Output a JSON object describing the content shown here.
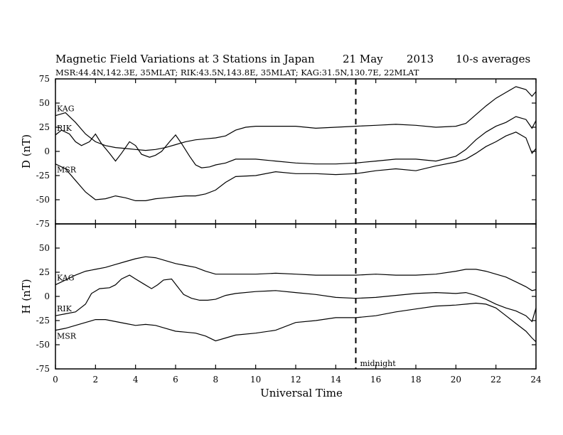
{
  "chart_data": {
    "type": "line",
    "title": "Magnetic Field Variations at 3 Stations in Japan",
    "date_label": "21 May",
    "year_label": "2013",
    "averaging_label": "10-s averages",
    "subtitle": "MSR:44.4N,142.3E, 35MLAT;  RIK:43.5N,143.8E, 35MLAT;  KAG:31.5N,130.7E, 22MLAT",
    "xlabel": "Universal Time",
    "xlim": [
      0,
      24
    ],
    "xticks": [
      "0",
      "2",
      "4",
      "6",
      "8",
      "10",
      "12",
      "14",
      "16",
      "18",
      "20",
      "22",
      "24"
    ],
    "marker": {
      "x": 15,
      "label": "midnight"
    },
    "panels": [
      {
        "ylabel": "D (nT)",
        "ylim": [
          -75,
          75
        ],
        "yticks": [
          "75",
          "50",
          "25",
          "0",
          "-25",
          "-50",
          "-75"
        ],
        "series": [
          {
            "name": "KAG",
            "x": [
              0,
              0.5,
              1,
              1.5,
              2,
              2.5,
              3,
              3.5,
              4,
              4.5,
              5,
              5.5,
              6,
              6.5,
              7,
              7.5,
              8,
              8.5,
              9,
              9.5,
              10,
              11,
              12,
              13,
              14,
              15,
              16,
              17,
              18,
              19,
              20,
              20.5,
              21,
              21.5,
              22,
              22.5,
              23,
              23.5,
              23.8,
              24
            ],
            "y": [
              37,
              40,
              30,
              18,
              10,
              6,
              4,
              3,
              2,
              1,
              2,
              4,
              7,
              10,
              12,
              13,
              14,
              16,
              22,
              25,
              26,
              26,
              26,
              24,
              25,
              26,
              27,
              28,
              27,
              25,
              26,
              29,
              38,
              47,
              55,
              61,
              67,
              64,
              57,
              62
            ]
          },
          {
            "name": "RIK",
            "x": [
              0,
              0.3,
              0.7,
              1,
              1.3,
              1.7,
              2,
              2.3,
              2.7,
              3,
              3.3,
              3.7,
              4,
              4.3,
              4.7,
              5,
              5.3,
              5.7,
              6,
              6.3,
              6.7,
              7,
              7.3,
              7.7,
              8,
              8.5,
              9,
              10,
              11,
              12,
              13,
              14,
              15,
              16,
              17,
              18,
              19,
              20,
              20.5,
              21,
              21.5,
              22,
              22.5,
              23,
              23.5,
              23.8,
              24
            ],
            "y": [
              17,
              22,
              18,
              10,
              6,
              10,
              18,
              8,
              -2,
              -10,
              -2,
              10,
              6,
              -3,
              -6,
              -4,
              0,
              10,
              17,
              8,
              -5,
              -14,
              -17,
              -16,
              -14,
              -12,
              -8,
              -8,
              -10,
              -12,
              -13,
              -13,
              -12,
              -10,
              -8,
              -8,
              -10,
              -5,
              2,
              12,
              20,
              26,
              30,
              36,
              33,
              24,
              32
            ]
          },
          {
            "name": "MSR",
            "x": [
              0,
              0.5,
              1,
              1.5,
              2,
              2.5,
              3,
              3.5,
              4,
              4.5,
              5,
              5.5,
              6,
              6.5,
              7,
              7.5,
              8,
              8.5,
              9,
              10,
              11,
              12,
              13,
              14,
              15,
              16,
              17,
              18,
              19,
              20,
              20.5,
              21,
              21.5,
              22,
              22.5,
              23,
              23.5,
              23.8,
              24
            ],
            "y": [
              -13,
              -18,
              -30,
              -42,
              -50,
              -49,
              -46,
              -48,
              -51,
              -51,
              -49,
              -48,
              -47,
              -46,
              -46,
              -44,
              -40,
              -32,
              -26,
              -25,
              -21,
              -23,
              -23,
              -24,
              -23,
              -20,
              -18,
              -20,
              -15,
              -11,
              -8,
              -2,
              5,
              10,
              16,
              20,
              14,
              -2,
              3
            ]
          }
        ]
      },
      {
        "ylabel": "H (nT)",
        "ylim": [
          -75,
          75
        ],
        "yticks": [
          "75",
          "50",
          "25",
          "0",
          "-25",
          "-50",
          "-75"
        ],
        "series": [
          {
            "name": "KAG",
            "x": [
              0,
              0.5,
              1,
              1.5,
              2,
              2.5,
              3,
              3.5,
              4,
              4.5,
              5,
              5.5,
              6,
              6.5,
              7,
              7.5,
              8,
              9,
              10,
              11,
              12,
              13,
              14,
              15,
              16,
              17,
              18,
              19,
              20,
              20.5,
              21,
              21.5,
              22,
              22.5,
              23,
              23.5,
              23.8,
              24
            ],
            "y": [
              12,
              17,
              22,
              26,
              28,
              30,
              33,
              36,
              39,
              41,
              40,
              37,
              34,
              32,
              30,
              26,
              23,
              23,
              23,
              24,
              23,
              22,
              22,
              22,
              23,
              22,
              22,
              23,
              26,
              28,
              28,
              26,
              23,
              20,
              15,
              10,
              6,
              7
            ]
          },
          {
            "name": "RIK",
            "x": [
              0,
              0.5,
              1,
              1.5,
              1.8,
              2.2,
              2.7,
              3,
              3.3,
              3.7,
              4,
              4.4,
              4.8,
              5.1,
              5.4,
              5.8,
              6.1,
              6.4,
              6.8,
              7.2,
              7.6,
              8,
              8.5,
              9,
              10,
              11,
              12,
              13,
              14,
              15,
              16,
              17,
              18,
              19,
              20,
              20.5,
              21,
              21.5,
              22,
              22.5,
              23,
              23.5,
              23.8,
              24
            ],
            "y": [
              -20,
              -18,
              -16,
              -8,
              3,
              8,
              9,
              12,
              18,
              22,
              18,
              13,
              8,
              12,
              17,
              18,
              10,
              2,
              -2,
              -4,
              -4,
              -3,
              1,
              3,
              5,
              6,
              4,
              2,
              -1,
              -2,
              -1,
              1,
              3,
              4,
              3,
              4,
              1,
              -3,
              -8,
              -12,
              -15,
              -20,
              -26,
              -12
            ]
          },
          {
            "name": "MSR",
            "x": [
              0,
              0.5,
              1,
              1.5,
              2,
              2.5,
              3,
              3.5,
              4,
              4.5,
              5,
              5.5,
              6,
              6.5,
              7,
              7.5,
              8,
              8.5,
              9,
              10,
              11,
              12,
              13,
              14,
              15,
              16,
              17,
              18,
              19,
              20,
              20.5,
              21,
              21.5,
              22,
              22.5,
              23,
              23.5,
              23.8,
              24
            ],
            "y": [
              -35,
              -33,
              -30,
              -27,
              -24,
              -24,
              -26,
              -28,
              -30,
              -29,
              -30,
              -33,
              -36,
              -37,
              -38,
              -41,
              -46,
              -43,
              -40,
              -38,
              -35,
              -27,
              -25,
              -22,
              -22,
              -20,
              -16,
              -13,
              -10,
              -9,
              -8,
              -7,
              -8,
              -12,
              -20,
              -28,
              -36,
              -43,
              -47
            ]
          }
        ]
      }
    ]
  }
}
